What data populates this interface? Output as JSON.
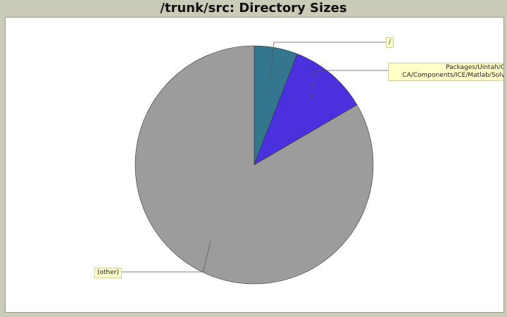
{
  "chart_data": {
    "type": "pie",
    "title": "/trunk/src: Directory Sizes",
    "slices": [
      {
        "label": "/",
        "value": 5.9,
        "color": "#34768d"
      },
      {
        "label": "Packages/Uintah/C\nCA/Components/ICE/Matlab/Solv",
        "value": 10.7,
        "color": "#4b30dd"
      },
      {
        "label": "(other)",
        "value": 83.4,
        "color": "#9c9c9c"
      }
    ],
    "start_angle_deg": 0,
    "direction": "clockwise",
    "legend": "callout labels"
  }
}
